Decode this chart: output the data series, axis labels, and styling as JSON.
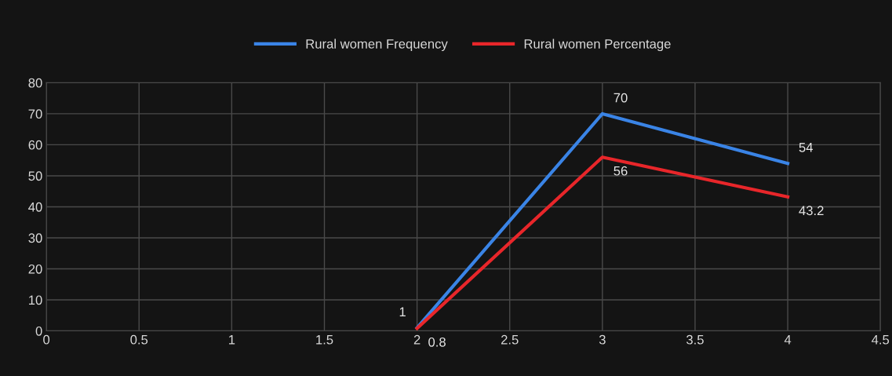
{
  "chart_data": {
    "type": "line",
    "x": [
      2,
      3,
      4
    ],
    "series": [
      {
        "name": "Rural women Frequency",
        "color": "#3a84e6",
        "values": [
          1,
          70,
          54
        ]
      },
      {
        "name": "Rural women Percentage",
        "color": "#e8262a",
        "values": [
          0.8,
          56,
          43.2
        ]
      }
    ],
    "xlim": [
      0,
      4.5
    ],
    "xticks": [
      0,
      0.5,
      1,
      1.5,
      2,
      2.5,
      3,
      3.5,
      4,
      4.5
    ],
    "ylim": [
      0,
      80
    ],
    "yticks": [
      0,
      10,
      20,
      30,
      40,
      50,
      60,
      70,
      80
    ],
    "grid": true,
    "legend": "top",
    "data_labels": true,
    "marker": "none",
    "line_style": "solid"
  }
}
